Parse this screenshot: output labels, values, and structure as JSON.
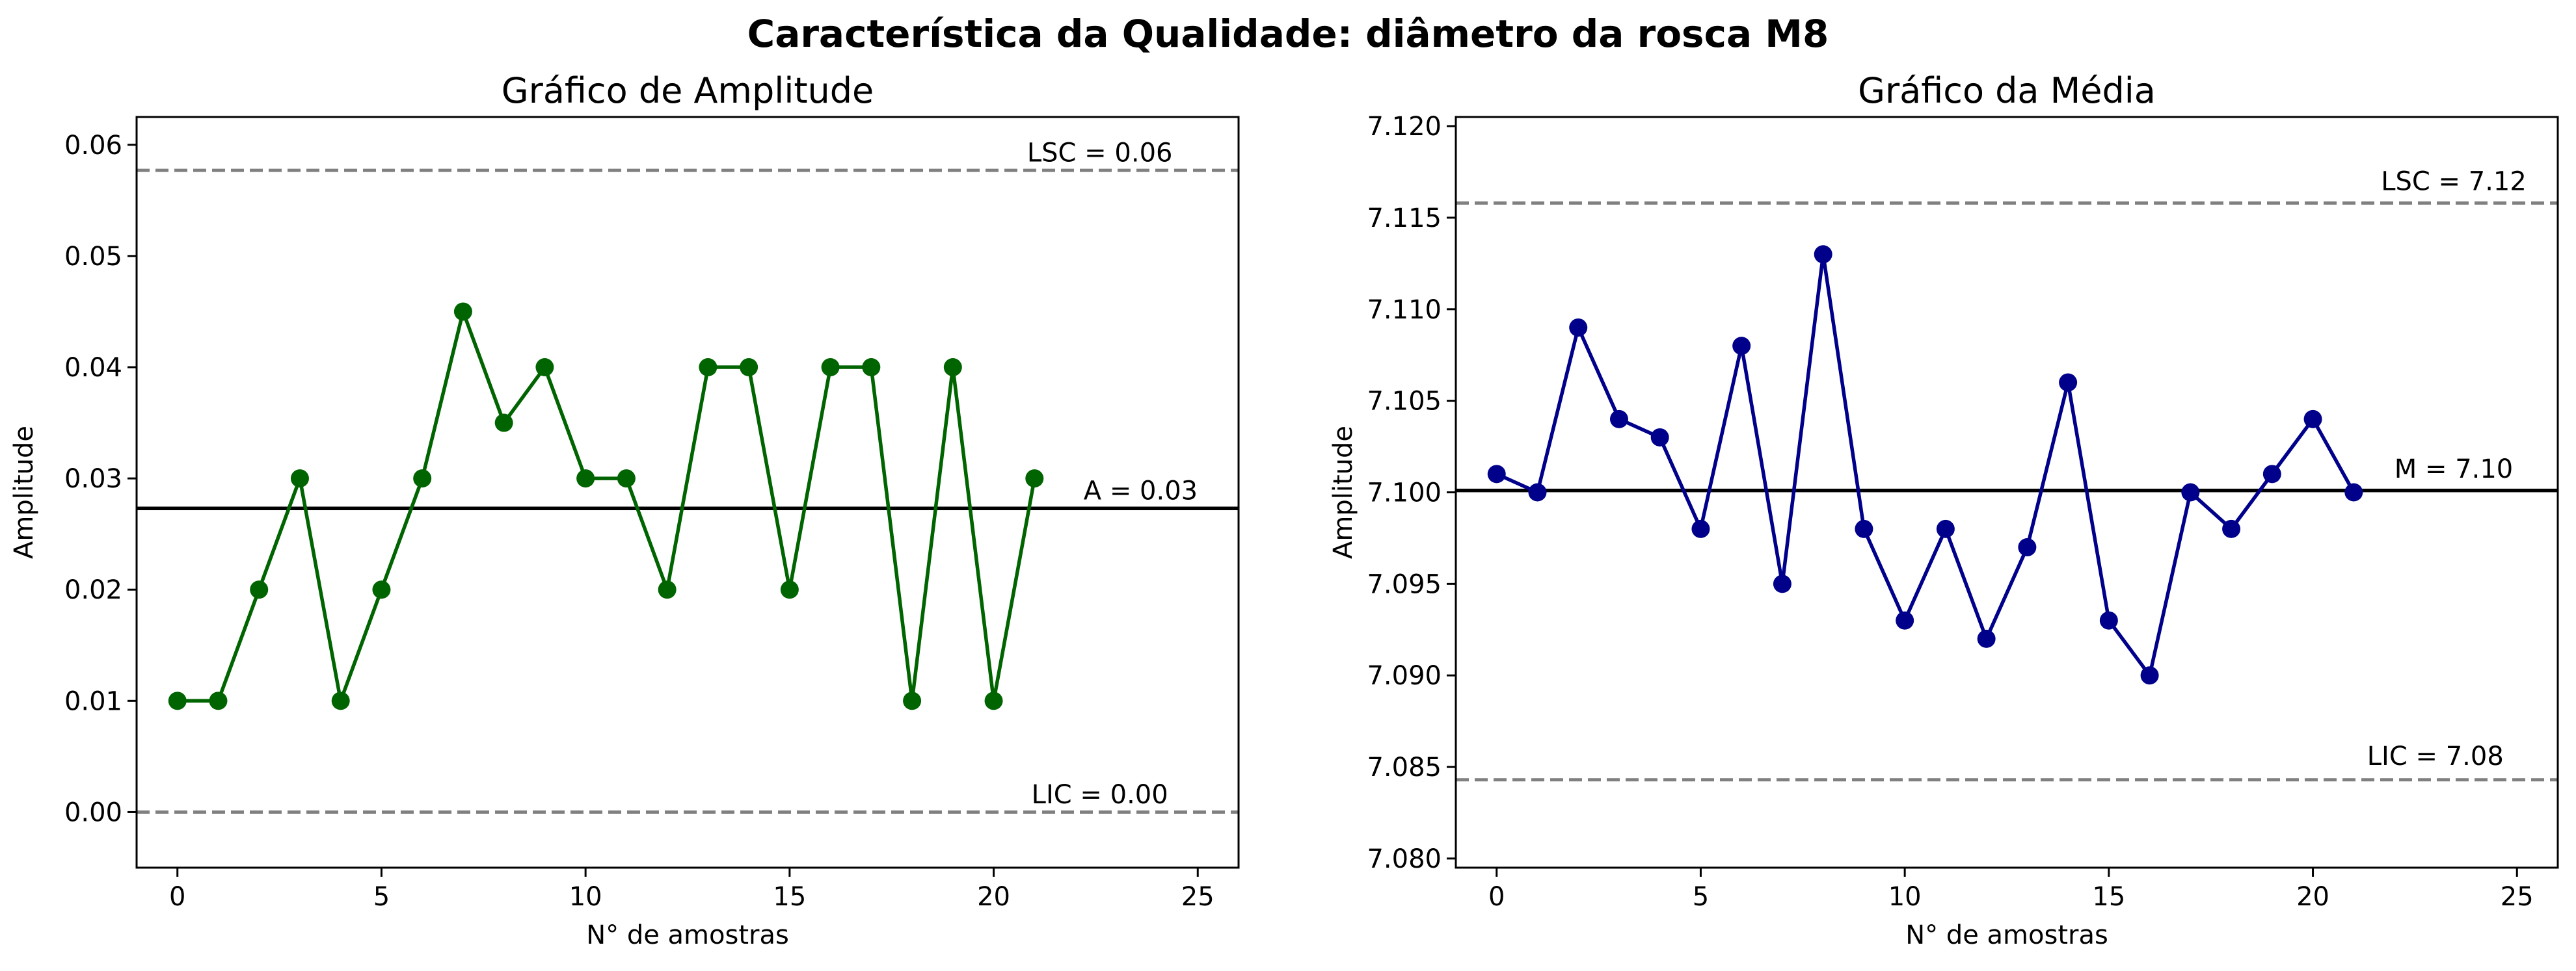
{
  "figure": {
    "suptitle": "Característica da Qualidade: diâmetro da rosca M8"
  },
  "chart_data": [
    {
      "type": "line",
      "title": "Gráfico de Amplitude",
      "xlabel": "N° de amostras",
      "ylabel": "Amplitude",
      "xlim": [
        -1,
        26
      ],
      "ylim": [
        -0.005,
        0.0625
      ],
      "xticks": [
        0,
        5,
        10,
        15,
        20,
        25
      ],
      "xtick_labels": [
        "0",
        "5",
        "10",
        "15",
        "20",
        "25"
      ],
      "yticks": [
        0.0,
        0.01,
        0.02,
        0.03,
        0.04,
        0.05,
        0.06
      ],
      "ytick_labels": [
        "0.00",
        "0.01",
        "0.02",
        "0.03",
        "0.04",
        "0.05",
        "0.06"
      ],
      "grid": false,
      "series": [
        {
          "x": [
            0,
            1,
            2,
            3,
            4,
            5,
            6,
            7,
            8,
            9,
            10,
            11,
            12,
            13,
            14,
            15,
            16,
            17,
            18,
            19,
            20,
            21
          ],
          "values": [
            0.01,
            0.01,
            0.02,
            0.03,
            0.01,
            0.02,
            0.03,
            0.045,
            0.035,
            0.04,
            0.03,
            0.03,
            0.02,
            0.04,
            0.04,
            0.02,
            0.04,
            0.04,
            0.01,
            0.04,
            0.01,
            0.03
          ],
          "color": "#006400",
          "marker": "circle"
        }
      ],
      "hlines": [
        {
          "y": 0.0577,
          "style": "dashed",
          "color": "#808080",
          "label": "LSC = 0.06",
          "label_x": 22.6,
          "label_y": 0.0585
        },
        {
          "y": 0.0273,
          "style": "solid",
          "color": "#000000",
          "label": "A = 0.03",
          "label_x": 23.6,
          "label_y": 0.0281
        },
        {
          "y": 0.0,
          "style": "dashed",
          "color": "#808080",
          "label": "LIC = 0.00",
          "label_x": 22.6,
          "label_y": 0.0008
        }
      ]
    },
    {
      "type": "line",
      "title": "Gráfico da Média",
      "xlabel": "N° de amostras",
      "ylabel": "Amplitude",
      "xlim": [
        -1,
        26
      ],
      "ylim": [
        7.0795,
        7.1205
      ],
      "xticks": [
        0,
        5,
        10,
        15,
        20,
        25
      ],
      "xtick_labels": [
        "0",
        "5",
        "10",
        "15",
        "20",
        "25"
      ],
      "yticks": [
        7.08,
        7.085,
        7.09,
        7.095,
        7.1,
        7.105,
        7.11,
        7.115,
        7.12
      ],
      "ytick_labels": [
        "7.080",
        "7.085",
        "7.090",
        "7.095",
        "7.100",
        "7.105",
        "7.110",
        "7.115",
        "7.120"
      ],
      "grid": false,
      "series": [
        {
          "x": [
            0,
            1,
            2,
            3,
            4,
            5,
            6,
            7,
            8,
            9,
            10,
            11,
            12,
            13,
            14,
            15,
            16,
            17,
            18,
            19,
            20,
            21
          ],
          "values": [
            7.101,
            7.1,
            7.109,
            7.104,
            7.103,
            7.098,
            7.108,
            7.095,
            7.113,
            7.098,
            7.093,
            7.098,
            7.092,
            7.097,
            7.106,
            7.093,
            7.09,
            7.1,
            7.098,
            7.101,
            7.104,
            7.1
          ],
          "color": "#00008B",
          "marker": "circle"
        }
      ],
      "hlines": [
        {
          "y": 7.1158,
          "style": "dashed",
          "color": "#808080",
          "label": "LSC = 7.12",
          "label_x": 23.45,
          "label_y": 7.1165
        },
        {
          "y": 7.1001,
          "style": "solid",
          "color": "#000000",
          "label": "M = 7.10",
          "label_x": 23.45,
          "label_y": 7.1008
        },
        {
          "y": 7.0843,
          "style": "dashed",
          "color": "#808080",
          "label": "LIC = 7.08",
          "label_x": 23.0,
          "label_y": 7.0851
        }
      ]
    }
  ]
}
